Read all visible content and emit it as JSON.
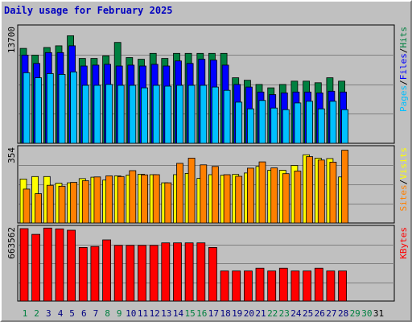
{
  "title": "Daily usage for February 2025",
  "colors": {
    "hits": "#008040",
    "files": "#0000ff",
    "pages": "#00c0ff",
    "visits": "#ffff00",
    "sites": "#ff8000",
    "kbytes": "#ff0000",
    "title": "#0000c0",
    "weekend_day": "#008040",
    "weekday_day": "#000080",
    "future_day": "#008040"
  },
  "chart_data": {
    "type": "bar",
    "title": "Daily usage for February 2025",
    "xlabel": "",
    "days": [
      "1",
      "2",
      "3",
      "4",
      "5",
      "6",
      "7",
      "8",
      "9",
      "10",
      "11",
      "12",
      "13",
      "14",
      "15",
      "16",
      "17",
      "18",
      "19",
      "20",
      "21",
      "22",
      "23",
      "24",
      "25",
      "26",
      "27",
      "28",
      "29",
      "30",
      "31"
    ],
    "weekend_days": [
      "1",
      "2",
      "8",
      "9",
      "15",
      "16",
      "22",
      "23",
      "29",
      "30"
    ],
    "days_with_data": 28,
    "grid": true,
    "panels": [
      {
        "name": "hits-files-pages",
        "max_label": "13700",
        "ylim": [
          0,
          13700
        ],
        "legend": [
          "Pages",
          "/",
          "Files",
          "/",
          "Hits"
        ],
        "series": [
          {
            "name": "Hits",
            "values": [
              11300,
              10500,
              11400,
              11600,
              12800,
              10100,
              10100,
              10400,
              12000,
              10200,
              10000,
              10700,
              10100,
              10700,
              10700,
              10700,
              10700,
              10700,
              7800,
              7500,
              7000,
              6600,
              7000,
              7400,
              7400,
              7200,
              7800,
              7400
            ]
          },
          {
            "name": "Files",
            "values": [
              10500,
              9500,
              10800,
              10800,
              11600,
              9200,
              9300,
              9400,
              9200,
              9300,
              9200,
              9400,
              9200,
              9800,
              9500,
              10000,
              9900,
              9300,
              7000,
              6700,
              6100,
              5800,
              6000,
              6100,
              6100,
              6000,
              6200,
              6100
            ]
          },
          {
            "name": "Pages",
            "values": [
              8400,
              7800,
              8300,
              8200,
              8500,
              6900,
              6900,
              7000,
              6900,
              6900,
              6600,
              6900,
              6800,
              6900,
              6900,
              6900,
              6700,
              6300,
              4900,
              4100,
              5100,
              4200,
              4000,
              4800,
              5000,
              4100,
              5000,
              4000
            ]
          }
        ]
      },
      {
        "name": "visits-sites",
        "max_label": "354",
        "ylim": [
          0,
          354
        ],
        "legend": [
          "Sites",
          "/",
          "Visits"
        ],
        "series": [
          {
            "name": "Visits",
            "values": [
              210,
              222,
              222,
              190,
              192,
              212,
              219,
              205,
              225,
              229,
              233,
              231,
              192,
              231,
              237,
              213,
              231,
              228,
              232,
              239,
              270,
              252,
              252,
              275,
              326,
              310,
              308,
              220
            ]
          },
          {
            "name": "Sites",
            "values": [
              162,
              140,
              180,
              176,
              194,
              202,
              220,
              225,
              222,
              250,
              230,
              231,
              192,
              285,
              310,
              278,
              270,
              231,
              223,
              262,
              292,
              263,
              236,
              248,
              317,
              301,
              291,
              348
            ]
          }
        ]
      },
      {
        "name": "kbytes",
        "max_label": "663562",
        "ylim": [
          0,
          663562
        ],
        "legend": [
          "KBytes"
        ],
        "series": [
          {
            "name": "KBytes",
            "values": [
              663562,
              611000,
              669000,
              661000,
              649000,
              491000,
              500000,
              560000,
              510000,
              510000,
              510000,
              510000,
              533000,
              533000,
              533000,
              533000,
              491000,
              276000,
              276000,
              276000,
              301000,
              276000,
              301000,
              276000,
              276000,
              301000,
              276000,
              276000
            ]
          }
        ]
      }
    ]
  }
}
